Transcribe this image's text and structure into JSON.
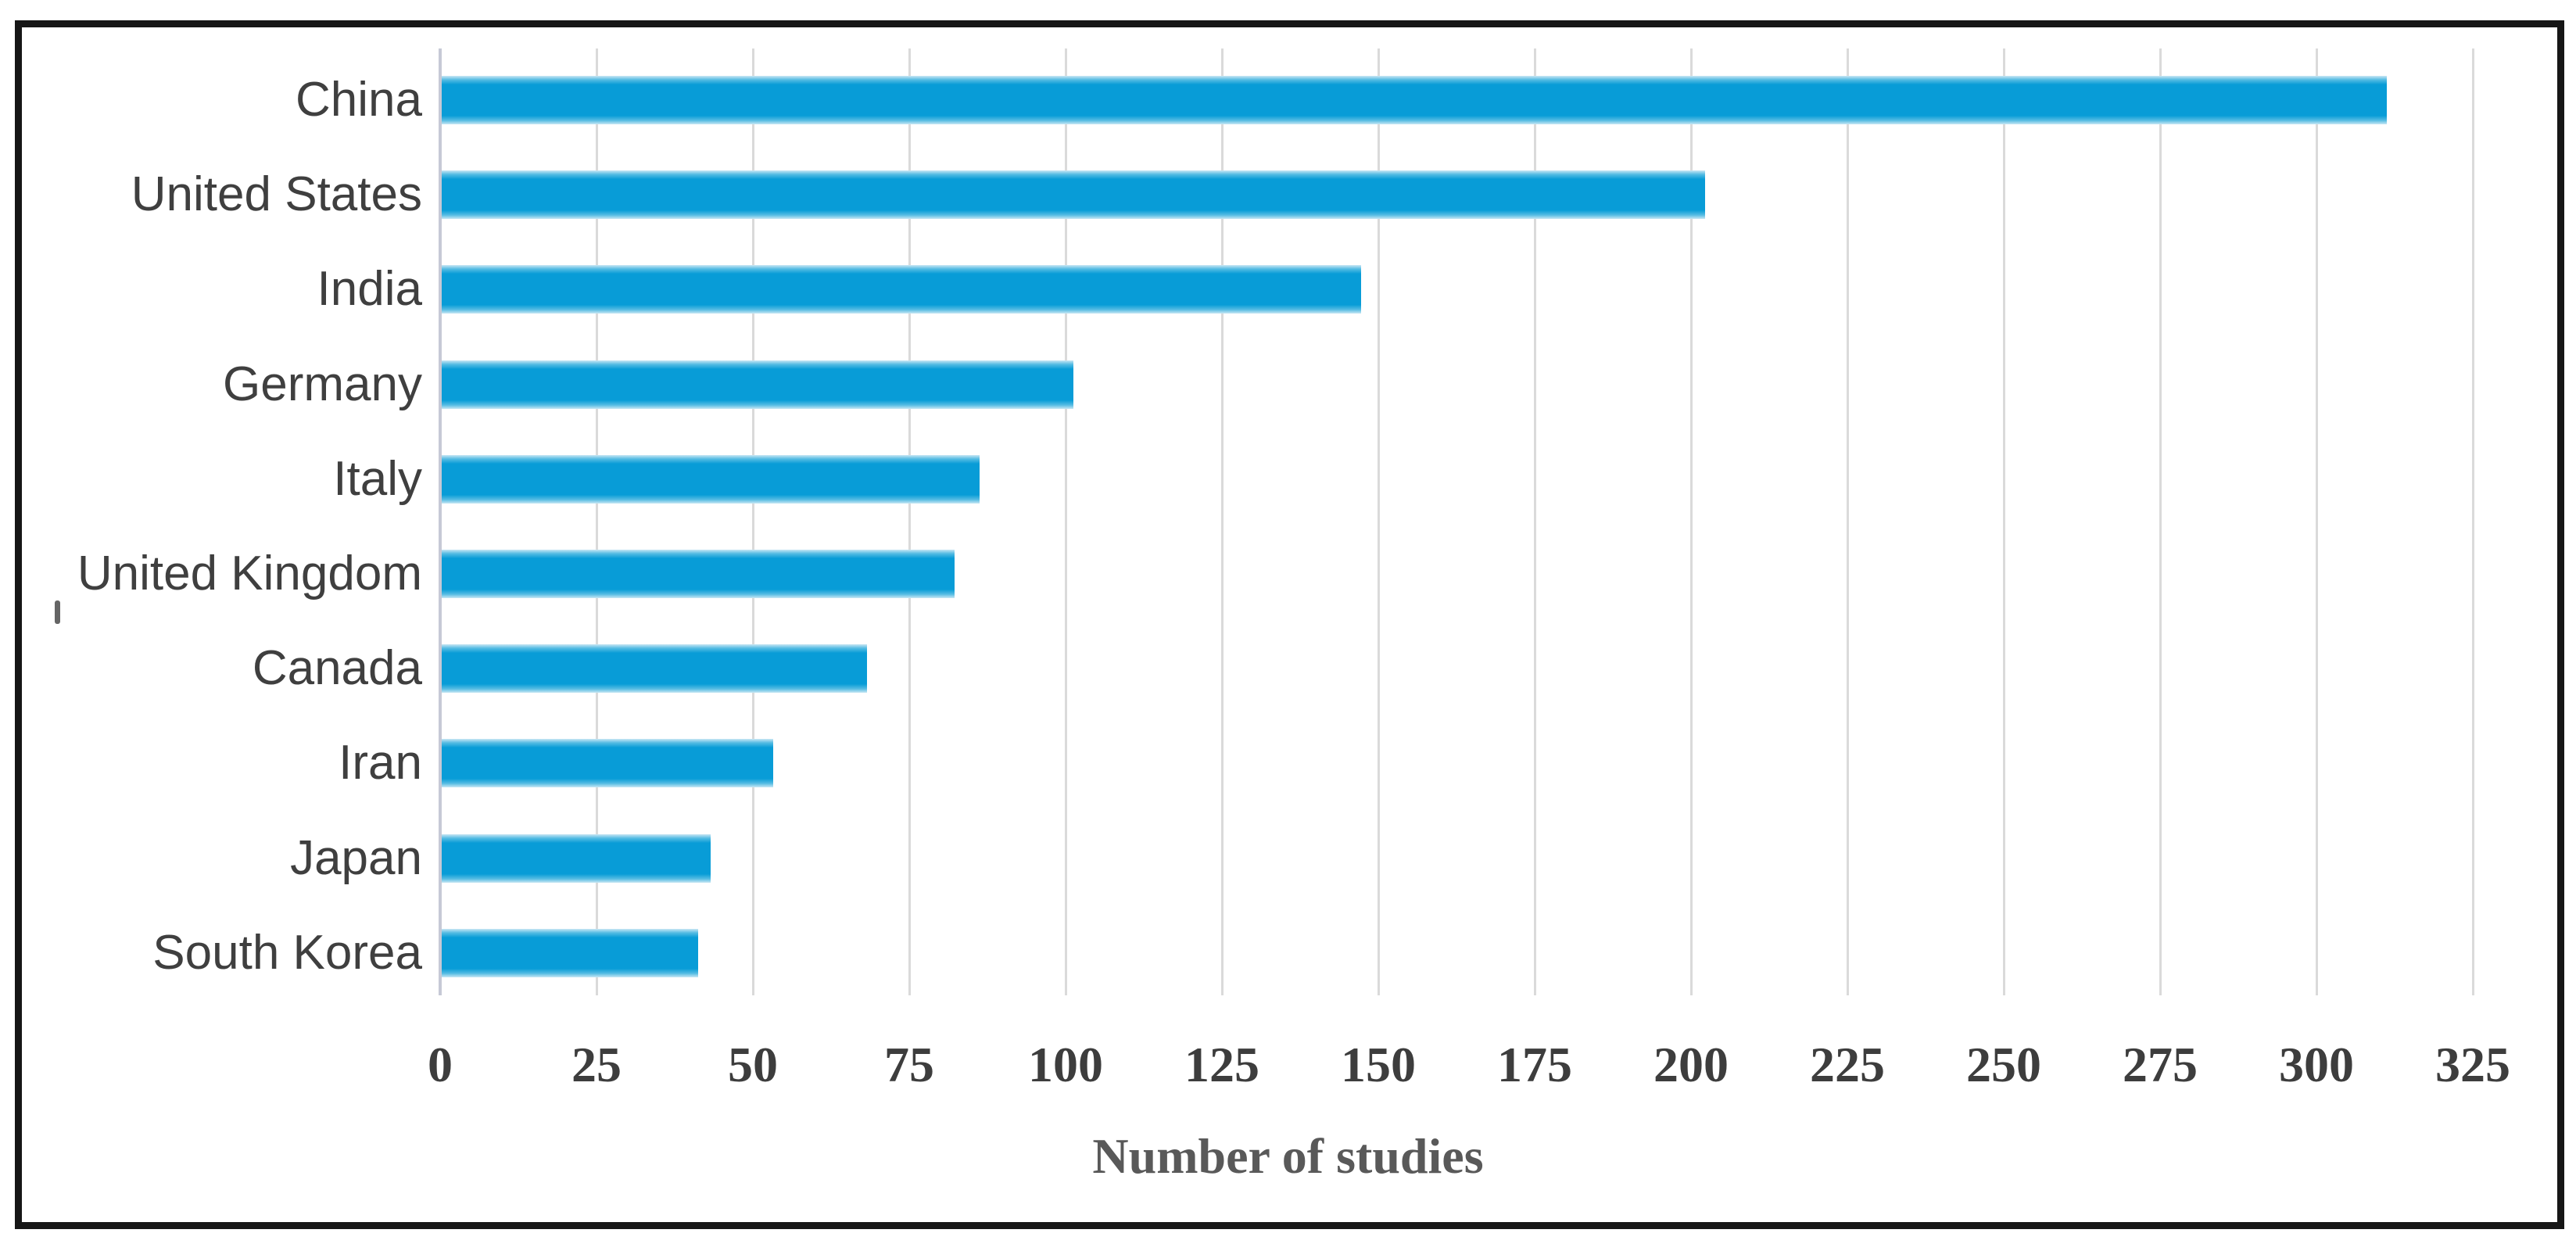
{
  "chart_data": {
    "type": "bar",
    "orientation": "horizontal",
    "title": "",
    "xlabel": "Number of studies",
    "ylabel": "",
    "categories": [
      "China",
      "United States",
      "India",
      "Germany",
      "Italy",
      "United Kingdom",
      "Canada",
      "Iran",
      "Japan",
      "South Korea"
    ],
    "values": [
      311,
      202,
      147,
      101,
      86,
      82,
      68,
      53,
      43,
      41
    ],
    "xlim": [
      0,
      325
    ],
    "xticks": [
      0,
      25,
      50,
      75,
      100,
      125,
      150,
      175,
      200,
      225,
      250,
      275,
      300,
      325
    ],
    "grid": "vertical-gridlines-on",
    "legend": "none",
    "bar_color": "#089cd7"
  },
  "colors": {
    "background": "#ffffff",
    "frame_border": "#161616",
    "gridline": "#dadada",
    "axis_line": "#c6c9d6",
    "bar_fill": "#089cd7",
    "bar_fade_mid": "#56bce3",
    "bar_fade_edge": "#c9e7f4",
    "category_label": "#3f3f3f",
    "tick_label": "#3d3d3d",
    "axis_title": "#595959"
  }
}
